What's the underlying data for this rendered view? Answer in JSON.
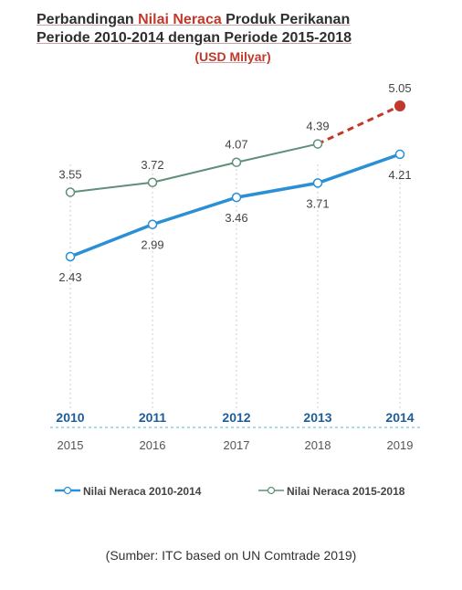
{
  "title": {
    "line1_pre": "Perbandingan ",
    "line1_accent": "Nilai Neraca",
    "line1_post": " Produk Perikanan",
    "line2": "Periode 2010-2014 dengan Periode 2015-2018",
    "unit": "(USD Milyar)"
  },
  "source": "(Sumber: ITC based on UN Comtrade 2019)",
  "colors": {
    "series_2010": "#2a8fd4",
    "series_2015": "#5f8f78",
    "projection": "#c0392b",
    "axis_year_top": "#1f5e96"
  },
  "chart_data": {
    "type": "line",
    "categories_top": [
      "2010",
      "2011",
      "2012",
      "2013",
      "2014"
    ],
    "categories_bottom": [
      "2015",
      "2016",
      "2017",
      "2018",
      "2019"
    ],
    "series": [
      {
        "name": "Nilai Neraca 2010-2014",
        "values": [
          2.43,
          2.99,
          3.46,
          3.71,
          4.21
        ],
        "labels": [
          "2.43",
          "2.99",
          "3.46",
          "3.71",
          "4.21"
        ]
      },
      {
        "name": "Nilai Neraca 2015-2018",
        "values": [
          3.55,
          3.72,
          4.07,
          4.39,
          5.05
        ],
        "labels": [
          "3.55",
          "3.72",
          "4.07",
          "4.39",
          "5.05"
        ],
        "projected_from_index": 3
      }
    ],
    "legend_position": "bottom",
    "grid": "vertical dashed"
  }
}
